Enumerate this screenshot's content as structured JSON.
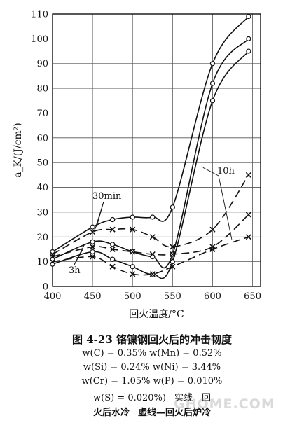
{
  "chart_data": {
    "type": "line",
    "xlabel": "回火温度/°C",
    "ylabel": "a_K/(J/cm²)",
    "xlim": [
      400,
      660
    ],
    "ylim": [
      0,
      110
    ],
    "xticks": [
      400,
      450,
      500,
      550,
      600,
      650
    ],
    "yticks": [
      0,
      10,
      20,
      30,
      40,
      50,
      60,
      70,
      80,
      90,
      100,
      110
    ],
    "grid": true,
    "annotations": [
      "30min",
      "3h",
      "10h"
    ],
    "series": [
      {
        "group": "30min",
        "style": "solid",
        "marker": "circle",
        "x": [
          400,
          450,
          475,
          500,
          525,
          550,
          600,
          645
        ],
        "y": [
          14,
          24,
          27,
          28,
          28,
          32,
          90,
          109
        ]
      },
      {
        "group": "3h",
        "style": "solid",
        "marker": "circle",
        "x": [
          400,
          450,
          475,
          500,
          525,
          550,
          600,
          645
        ],
        "y": [
          11,
          18,
          17,
          14,
          12,
          13,
          82,
          100
        ]
      },
      {
        "group": "10h",
        "style": "solid",
        "marker": "circle",
        "x": [
          400,
          450,
          475,
          500,
          525,
          550,
          600,
          645
        ],
        "y": [
          9,
          14,
          11,
          8,
          5,
          10,
          75,
          95
        ]
      },
      {
        "group": "30min",
        "style": "dashed",
        "marker": "x",
        "x": [
          400,
          450,
          475,
          500,
          525,
          550,
          600,
          645
        ],
        "y": [
          13,
          22,
          23,
          23,
          20,
          16,
          23,
          45
        ]
      },
      {
        "group": "3h",
        "style": "dashed",
        "marker": "x",
        "x": [
          400,
          450,
          475,
          500,
          525,
          550,
          600,
          645
        ],
        "y": [
          12,
          16,
          15,
          14,
          13,
          13,
          16,
          29
        ]
      },
      {
        "group": "10h",
        "style": "dashed",
        "marker": "x",
        "x": [
          400,
          450,
          475,
          500,
          525,
          550,
          600,
          645
        ],
        "y": [
          10,
          12,
          8,
          5,
          5,
          8,
          15,
          20
        ]
      }
    ]
  },
  "caption": {
    "title": "图 4-23   铬镍钢回火后的冲击韧度",
    "line1": "w(C) = 0.35%    w(Mn) = 0.52%",
    "line2": "w(Si) = 0.24%    w(Ni) = 3.44%",
    "line3": "w(Cr) = 1.05%    w(P) = 0.010%",
    "line4_a": "w(S) = 0.020%)",
    "line4_b": "实线—回",
    "line5_a": "火后水冷",
    "line5_b": "虚线—回火后炉冷"
  },
  "watermark": "GHOME.COM"
}
